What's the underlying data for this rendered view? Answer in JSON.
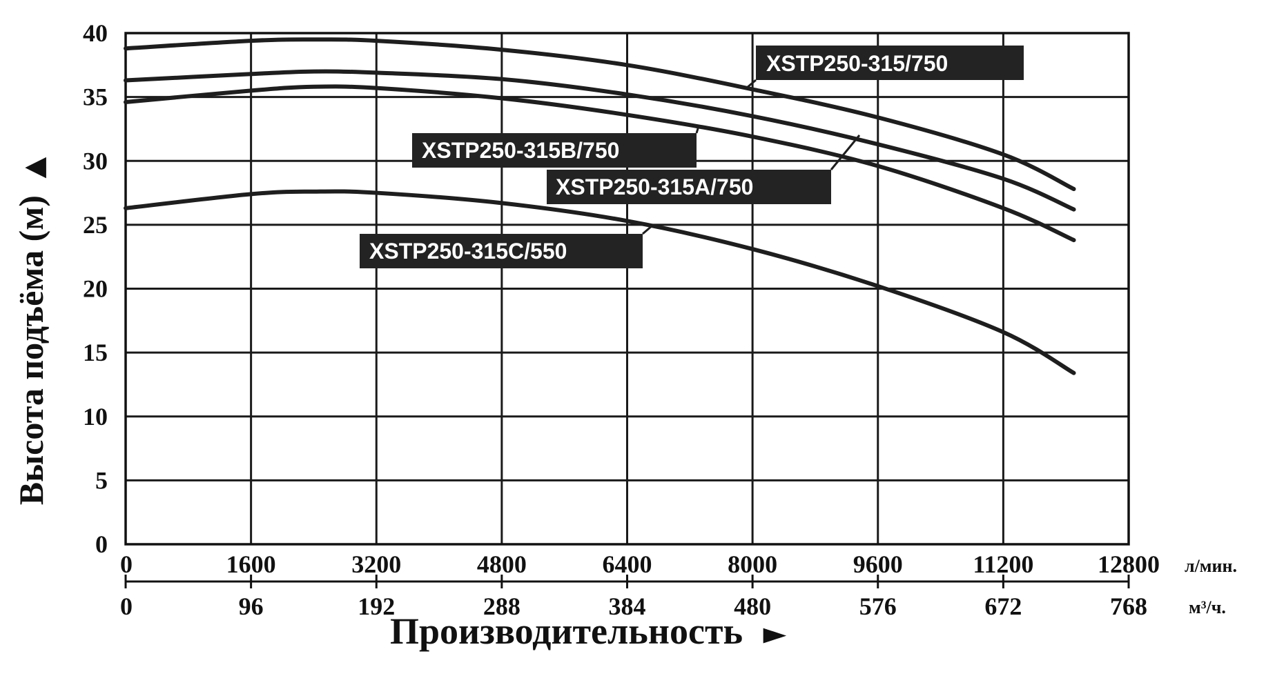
{
  "chart_data": {
    "type": "line",
    "title": "",
    "ylabel": "Высота подъёма (м)",
    "ylabel_arrow": "▲",
    "xlabel": "Производительность",
    "xlabel_arrow": "►",
    "ylim": [
      0,
      40
    ],
    "yticks": [
      "0",
      "5",
      "10",
      "15",
      "20",
      "25",
      "30",
      "35",
      "40"
    ],
    "xlim": [
      0,
      12800
    ],
    "xticks_lmin": [
      "0",
      "1600",
      "3200",
      "4800",
      "6400",
      "8000",
      "9600",
      "11200",
      "12800"
    ],
    "x_unit_lmin": "л/мин.",
    "xticks_m3h": [
      "0",
      "96",
      "192",
      "288",
      "384",
      "480",
      "576",
      "672",
      "768"
    ],
    "x_unit_m3h": "м³/ч.",
    "grid": true,
    "colors": {
      "curve": "#1e1e1e",
      "label_bg": "#232323",
      "label_text": "#ffffff"
    },
    "series": [
      {
        "name": "XSTP250-315/750",
        "x": [
          0,
          1600,
          2400,
          3200,
          4800,
          6400,
          8000,
          9600,
          11200,
          12100
        ],
        "y": [
          38.8,
          39.4,
          39.5,
          39.4,
          38.7,
          37.5,
          35.6,
          33.4,
          30.5,
          27.8
        ]
      },
      {
        "name": "XSTP250-315B/750",
        "x": [
          0,
          1600,
          2400,
          3200,
          4800,
          6400,
          8000,
          9600,
          11200,
          12100
        ],
        "y": [
          36.3,
          36.8,
          37.0,
          36.9,
          36.4,
          35.2,
          33.5,
          31.3,
          28.6,
          26.2
        ]
      },
      {
        "name": "XSTP250-315A/750",
        "x": [
          0,
          1600,
          2400,
          3200,
          4800,
          6400,
          8000,
          9600,
          11200,
          12100
        ],
        "y": [
          34.6,
          35.5,
          35.8,
          35.7,
          34.9,
          33.6,
          31.9,
          29.6,
          26.3,
          23.8
        ]
      },
      {
        "name": "XSTP250-315C/550",
        "x": [
          0,
          1600,
          2400,
          3200,
          4800,
          6400,
          8000,
          9600,
          11200,
          12100
        ],
        "y": [
          26.3,
          27.4,
          27.6,
          27.5,
          26.7,
          25.3,
          23.1,
          20.2,
          16.6,
          13.4
        ]
      }
    ]
  }
}
